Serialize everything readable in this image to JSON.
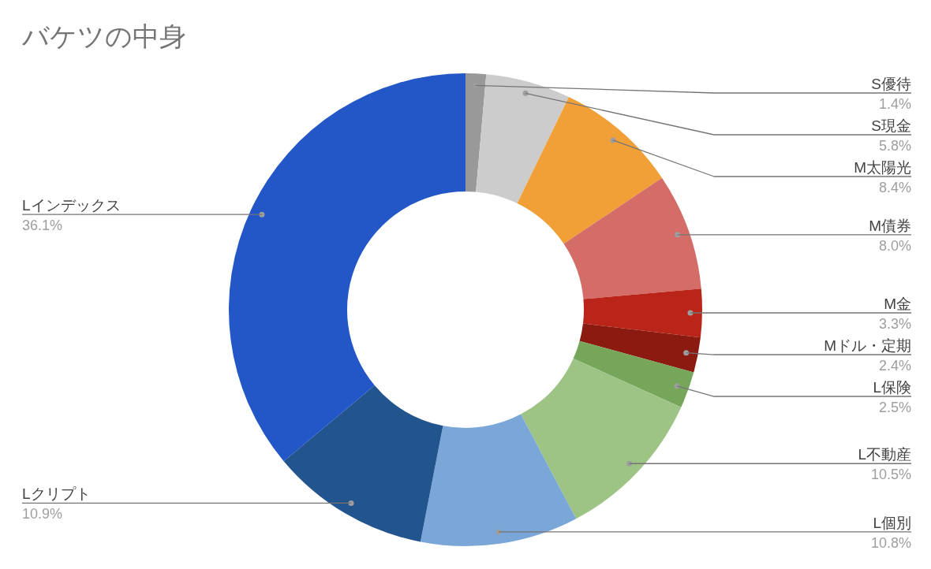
{
  "chart_data": {
    "type": "donut",
    "title": "バケツの中身",
    "categories": [
      "S優待",
      "S現金",
      "M太陽光",
      "M債券",
      "M金",
      "Mドル・定期",
      "L保険",
      "L不動産",
      "L個別",
      "Lクリプト",
      "Lインデックス"
    ],
    "values": [
      1.4,
      5.8,
      8.4,
      8.0,
      3.3,
      2.4,
      2.5,
      10.5,
      10.8,
      10.9,
      36.1
    ],
    "colors": [
      "#999999",
      "#cccccc",
      "#f1a038",
      "#d46c68",
      "#bb2519",
      "#8b1a10",
      "#76a65a",
      "#9dc385",
      "#7ba7d8",
      "#22548e",
      "#2356c6"
    ],
    "value_labels": [
      "1.4%",
      "5.8%",
      "8.4%",
      "8.0%",
      "3.3%",
      "2.4%",
      "2.5%",
      "10.5%",
      "10.8%",
      "10.9%",
      "36.1%"
    ],
    "legend": false
  }
}
